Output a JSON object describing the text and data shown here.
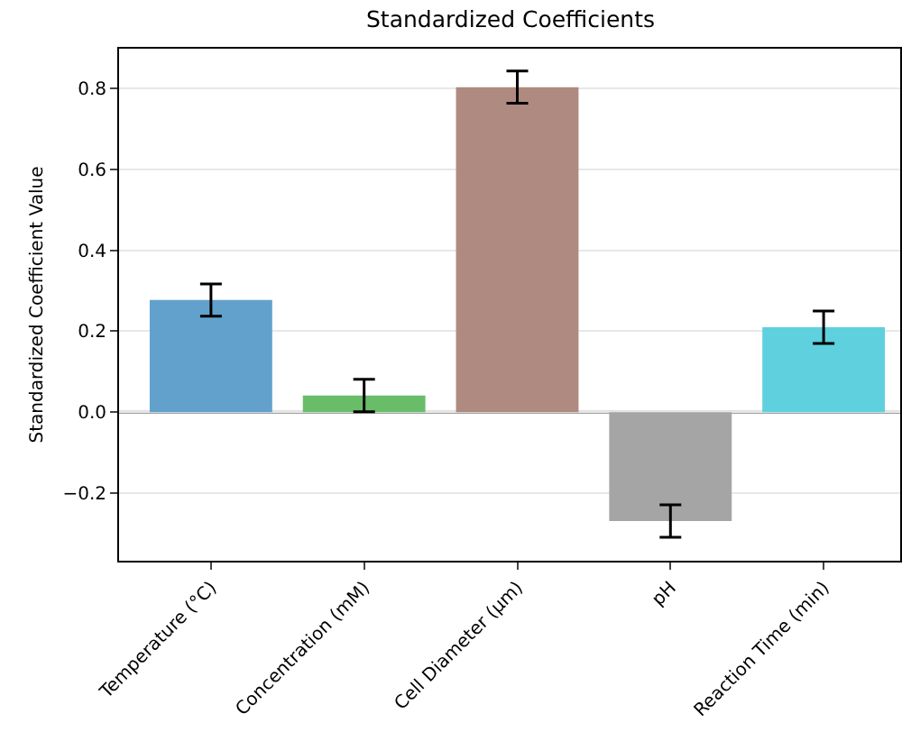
{
  "chart_data": {
    "type": "bar",
    "title": "Standardized Coefficients",
    "ylabel": "Standardized Coefficient Value",
    "categories": [
      "Temperature (°C)",
      "Concentration (mM)",
      "Cell Diameter (μm)",
      "pH",
      "Reaction Time (min)"
    ],
    "values": [
      0.277,
      0.041,
      0.803,
      -0.269,
      0.21
    ],
    "errors": [
      0.04,
      0.04,
      0.04,
      0.04,
      0.04
    ],
    "colors": [
      "#62a1cb",
      "#69bd69",
      "#ae8a80",
      "#a5a5a5",
      "#5fd0de"
    ],
    "ylim": [
      -0.367,
      0.898
    ],
    "yticks": [
      {
        "value": -0.2,
        "label": "−0.2"
      },
      {
        "value": 0,
        "label": "0.0"
      },
      {
        "value": 0.2,
        "label": "0.2"
      },
      {
        "value": 0.4,
        "label": "0.4"
      },
      {
        "value": 0.6,
        "label": "0.6"
      },
      {
        "value": 0.8,
        "label": "0.8"
      }
    ],
    "ref_lines": [
      {
        "axis": "y",
        "value": 0,
        "color": "#808080"
      }
    ],
    "grid": "y"
  }
}
